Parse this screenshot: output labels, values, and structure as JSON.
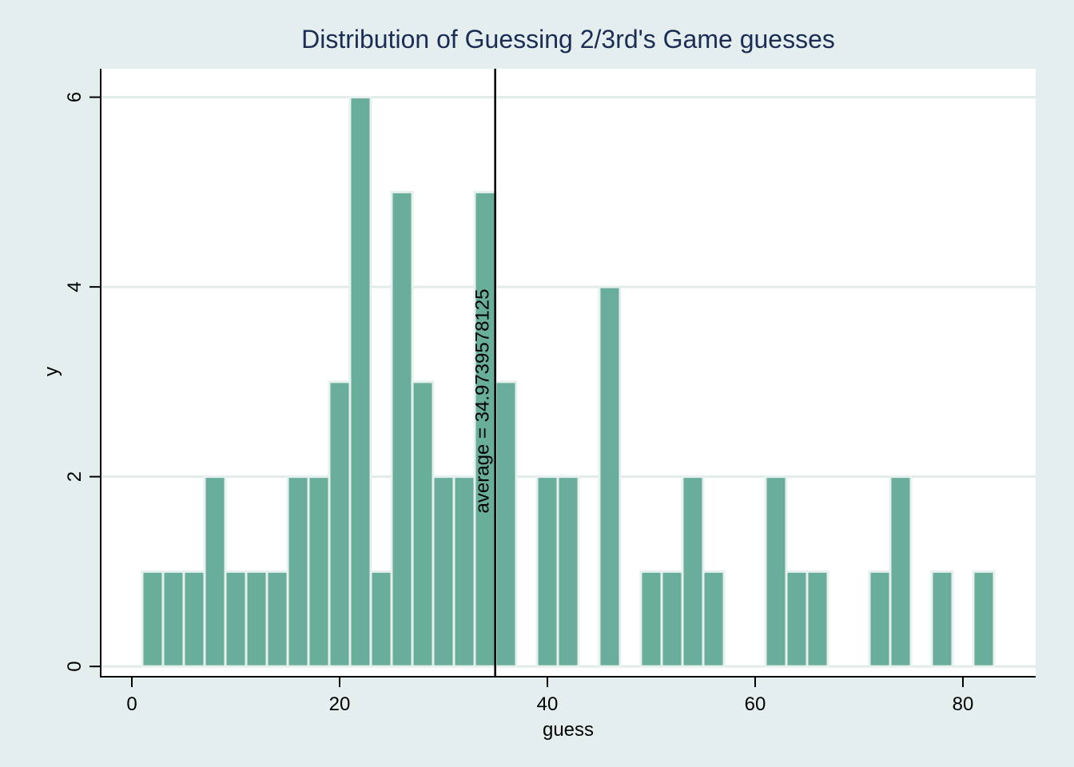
{
  "chart_data": {
    "type": "bar",
    "title": "Distribution of Guessing 2/3rd's Game guesses",
    "xlabel": "guess",
    "ylabel": "y",
    "xlim": [
      -3,
      87
    ],
    "ylim": [
      -0.1,
      6.3
    ],
    "xticks": [
      0,
      20,
      40,
      60,
      80
    ],
    "yticks": [
      0,
      2,
      4,
      6
    ],
    "grid": true,
    "bin_width": 2,
    "bin_starts": [
      1,
      3,
      5,
      7,
      9,
      11,
      13,
      15,
      17,
      19,
      21,
      23,
      25,
      27,
      29,
      31,
      33,
      35,
      37,
      39,
      41,
      43,
      45,
      47,
      49,
      51,
      53,
      55,
      57,
      59,
      61,
      63,
      65,
      67,
      69,
      71,
      73,
      75,
      77,
      79,
      81
    ],
    "values": [
      1,
      1,
      1,
      2,
      1,
      1,
      1,
      2,
      2,
      3,
      6,
      1,
      5,
      3,
      2,
      2,
      5,
      3,
      0,
      2,
      2,
      0,
      4,
      0,
      1,
      1,
      2,
      1,
      0,
      0,
      2,
      1,
      1,
      0,
      0,
      1,
      2,
      0,
      1,
      0,
      1
    ],
    "bar_color": "#69ad9b",
    "reference_line": {
      "x": 34.97395782,
      "label": "average = 34.9739578125"
    }
  }
}
